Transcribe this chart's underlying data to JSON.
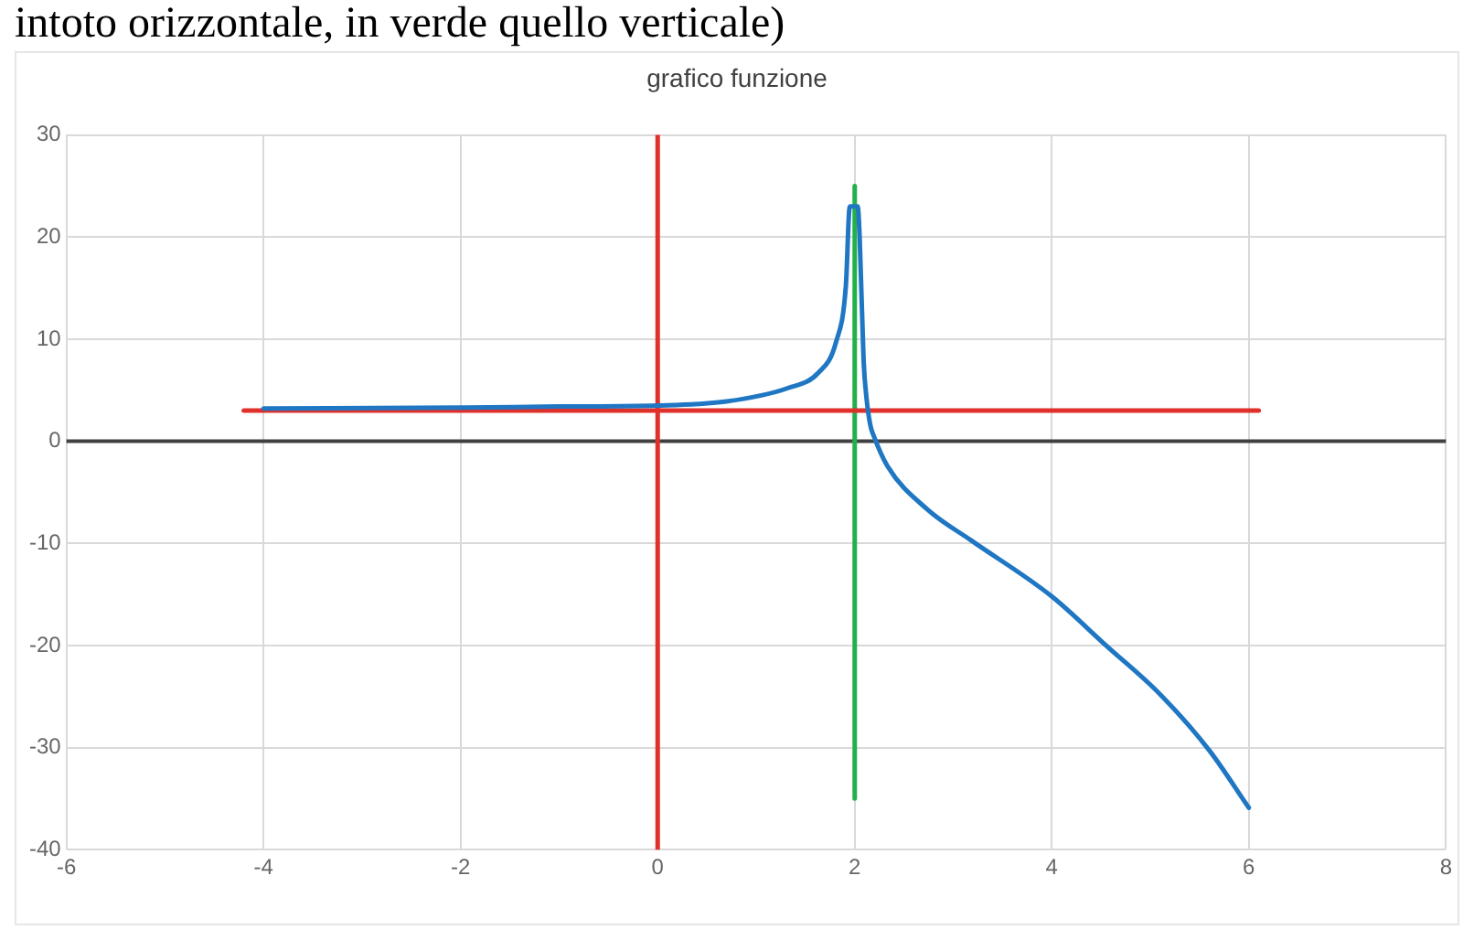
{
  "chart_data": {
    "type": "line",
    "title": "grafico funzione",
    "annotations": [
      "intoto orizzontale, in verde quello verticale)"
    ],
    "series": [
      {
        "color": "#1f77c4",
        "x": [
          -4,
          -2,
          -1,
          0,
          0.7,
          1.32,
          1.63,
          1.81,
          1.91,
          1.95,
          2.03,
          2.05,
          2.09,
          2.12,
          2.16,
          2.19,
          2.33,
          2.74,
          3.18,
          4.0,
          4.55,
          5.1,
          5.6,
          6.0
        ],
        "values": [
          3.2,
          3.3,
          3.4,
          3.5,
          3.9,
          5.2,
          6.7,
          9.7,
          15.2,
          23,
          23,
          20,
          7.9,
          4.2,
          1.5,
          0.6,
          -2.4,
          -6.7,
          -9.7,
          -15.2,
          -20,
          -24.8,
          -30.3,
          -35.9
        ]
      },
      {
        "color": "#e0302a",
        "x": [
          -4.2,
          6.1
        ],
        "values": [
          3,
          3
        ]
      },
      {
        "color": "#e0302a",
        "x": [
          0,
          0
        ],
        "values": [
          -40,
          30
        ]
      },
      {
        "color": "#22b04a",
        "x": [
          2,
          2
        ],
        "values": [
          -35,
          25
        ]
      }
    ],
    "ref_lines": [
      {
        "axis": "y",
        "value": 0,
        "color": "#404040"
      }
    ],
    "xlim": [
      -6,
      8
    ],
    "xticks": [
      -6,
      -4,
      -2,
      0,
      2,
      4,
      6,
      8
    ],
    "ylim": [
      -40,
      30
    ],
    "yticks": [
      -40,
      -30,
      -20,
      -10,
      0,
      10,
      20,
      30
    ],
    "grid": true,
    "legend": false,
    "marker": "none",
    "line_style": "solid"
  }
}
